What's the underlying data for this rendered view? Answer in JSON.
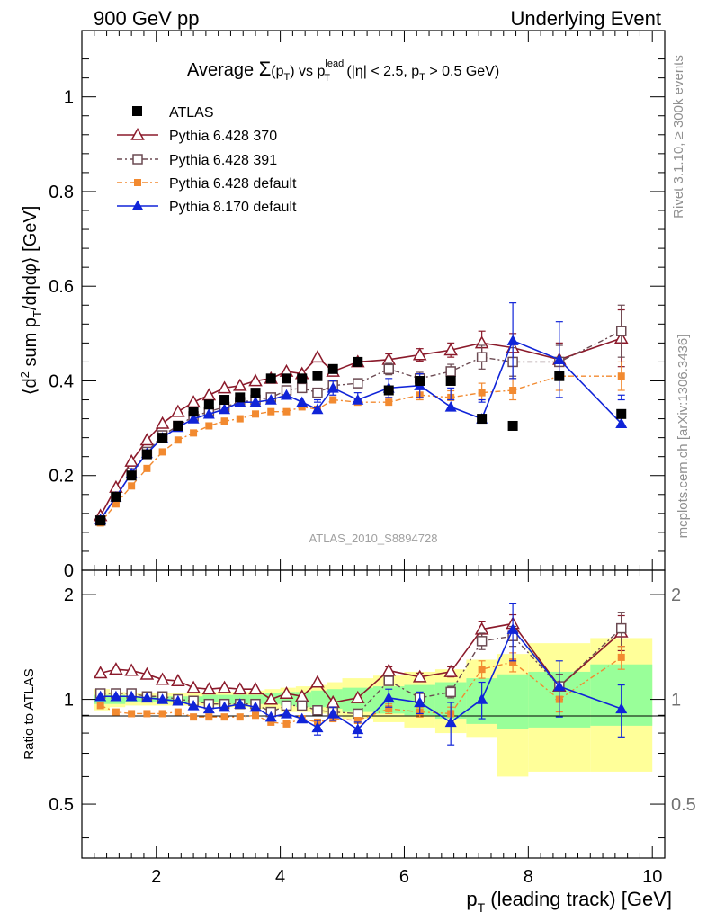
{
  "header": {
    "left": "900 GeV pp",
    "right": "Underlying Event"
  },
  "title": {
    "prefix": "Average ",
    "sigma": "Σ",
    "paren_open": "(p",
    "paren_sub": "T",
    "paren_close": ")",
    "vs": " vs p",
    "vs_sup": "lead",
    "vs_sub": "T",
    "cond1": " (|η| < 2.5, p",
    "cond_sub": "T",
    "cond2": " > 0.5 GeV)"
  },
  "watermark": "ATLAS_2010_S8894728",
  "side_labels": {
    "top": "Rivet 3.1.10, ≥ 300k events",
    "bottom": "mcplots.cern.ch [arXiv:1306.3436]"
  },
  "legend": {
    "atlas": "ATLAS",
    "py370": "Pythia 6.428 370",
    "py391": "Pythia 6.428 391",
    "pydef": "Pythia 6.428 default",
    "py8": "Pythia 8.170 default"
  },
  "colors": {
    "atlas": "#000000",
    "py370": "#8b1a2b",
    "py391": "#6b4a52",
    "pydef": "#f28a30",
    "py8": "#1024d8",
    "band_yellow": "#ffff99",
    "band_green": "#99ff99"
  },
  "chart_data": [
    {
      "type": "scatter",
      "ylabel": "⟨d² sum p_T/dηdφ⟩ [GeV]",
      "ylabel_parts": {
        "a": "⟨d",
        "a_sup": "2",
        "b": " sum p",
        "b_sub": "T",
        "c": "/dηdφ⟩ [GeV]"
      },
      "xlim": [
        0.8,
        10.2
      ],
      "ylim": [
        0,
        1.14
      ],
      "yticks": [
        0,
        0.2,
        0.4,
        0.6,
        0.8,
        1
      ],
      "ytick_labels": [
        "0",
        "0.2",
        "0.4",
        "0.6",
        "0.8",
        "1"
      ],
      "series": [
        {
          "name": "ATLAS",
          "key": "atlas",
          "x": [
            1.1,
            1.35,
            1.6,
            1.85,
            2.1,
            2.35,
            2.6,
            2.85,
            3.1,
            3.35,
            3.6,
            3.85,
            4.1,
            4.35,
            4.6,
            4.85,
            5.25,
            5.75,
            6.25,
            6.75,
            7.25,
            7.75,
            8.5,
            9.5
          ],
          "y": [
            0.105,
            0.155,
            0.2,
            0.245,
            0.28,
            0.305,
            0.335,
            0.35,
            0.36,
            0.365,
            0.375,
            0.405,
            0.405,
            0.405,
            0.41,
            0.425,
            0.44,
            0.38,
            0.4,
            0.4,
            0.32,
            0.305,
            0.41,
            0.33
          ]
        },
        {
          "name": "Pythia 6.428 370",
          "key": "py370",
          "x": [
            1.1,
            1.35,
            1.6,
            1.85,
            2.1,
            2.35,
            2.6,
            2.85,
            3.1,
            3.35,
            3.6,
            3.85,
            4.1,
            4.35,
            4.6,
            4.85,
            5.25,
            5.75,
            6.25,
            6.75,
            7.25,
            7.75,
            8.5,
            9.5
          ],
          "y": [
            0.115,
            0.175,
            0.23,
            0.275,
            0.31,
            0.335,
            0.355,
            0.37,
            0.385,
            0.39,
            0.4,
            0.405,
            0.42,
            0.415,
            0.45,
            0.42,
            0.44,
            0.445,
            0.455,
            0.465,
            0.48,
            0.47,
            0.445,
            0.49
          ],
          "err": [
            0,
            0,
            0,
            0,
            0,
            0,
            0,
            0,
            0,
            0,
            0,
            0,
            0,
            0,
            0,
            0,
            0,
            0.012,
            0.013,
            0.015,
            0.025,
            0.03,
            0.035,
            0.06
          ]
        },
        {
          "name": "Pythia 6.428 391",
          "key": "py391",
          "x": [
            1.1,
            1.35,
            1.6,
            1.85,
            2.1,
            2.35,
            2.6,
            2.85,
            3.1,
            3.35,
            3.6,
            3.85,
            4.1,
            4.35,
            4.6,
            4.85,
            5.25,
            5.75,
            6.25,
            6.75,
            7.25,
            7.75,
            8.5,
            9.5
          ],
          "y": [
            0.105,
            0.155,
            0.205,
            0.25,
            0.285,
            0.305,
            0.325,
            0.335,
            0.345,
            0.355,
            0.36,
            0.365,
            0.38,
            0.385,
            0.375,
            0.39,
            0.395,
            0.425,
            0.405,
            0.42,
            0.45,
            0.44,
            0.44,
            0.505
          ],
          "err": [
            0,
            0,
            0,
            0,
            0,
            0,
            0,
            0,
            0,
            0,
            0,
            0,
            0,
            0,
            0,
            0,
            0,
            0.012,
            0.013,
            0.015,
            0.025,
            0.03,
            0.035,
            0.055
          ]
        },
        {
          "name": "Pythia 6.428 default",
          "key": "pydef",
          "x": [
            1.1,
            1.35,
            1.6,
            1.85,
            2.1,
            2.35,
            2.6,
            2.85,
            3.1,
            3.35,
            3.6,
            3.85,
            4.1,
            4.35,
            4.6,
            4.85,
            5.25,
            5.75,
            6.25,
            6.75,
            7.25,
            7.75,
            8.5,
            9.5
          ],
          "y": [
            0.1,
            0.14,
            0.178,
            0.215,
            0.25,
            0.275,
            0.29,
            0.305,
            0.315,
            0.32,
            0.33,
            0.335,
            0.335,
            0.345,
            0.34,
            0.36,
            0.355,
            0.355,
            0.37,
            0.365,
            0.375,
            0.38,
            0.41,
            0.41
          ],
          "err": [
            0,
            0,
            0,
            0,
            0,
            0,
            0,
            0,
            0,
            0,
            0,
            0,
            0,
            0,
            0,
            0,
            0,
            0.01,
            0.012,
            0.014,
            0.02,
            0.025,
            0.03,
            0.03
          ]
        },
        {
          "name": "Pythia 8.170 default",
          "key": "py8",
          "x": [
            1.1,
            1.35,
            1.6,
            1.85,
            2.1,
            2.35,
            2.6,
            2.85,
            3.1,
            3.35,
            3.6,
            3.85,
            4.1,
            4.35,
            4.6,
            4.85,
            5.25,
            5.75,
            6.25,
            6.75,
            7.25,
            7.75,
            8.5,
            9.5
          ],
          "y": [
            0.107,
            0.155,
            0.205,
            0.247,
            0.28,
            0.302,
            0.32,
            0.33,
            0.34,
            0.355,
            0.355,
            0.36,
            0.37,
            0.355,
            0.34,
            0.385,
            0.36,
            0.385,
            0.39,
            0.345,
            0.32,
            0.485,
            0.445,
            0.31
          ],
          "err": [
            0,
            0,
            0,
            0,
            0,
            0,
            0,
            0,
            0,
            0,
            0,
            0,
            0,
            0,
            0.015,
            0.015,
            0.015,
            0.02,
            0.025,
            0.04,
            0.035,
            0.08,
            0.08,
            0.06
          ]
        }
      ]
    },
    {
      "type": "scatter",
      "ylabel": "Ratio to ATLAS",
      "xlabel": "p_T (leading track) [GeV]",
      "xlabel_parts": {
        "a": "p",
        "a_sub": "T",
        "b": " (leading track) [GeV]"
      },
      "xlim": [
        0.8,
        10.2
      ],
      "ylim": [
        0.35,
        2.35
      ],
      "yticks": [
        0.5,
        1,
        2
      ],
      "ytick_labels": [
        "0.5",
        "1",
        "2"
      ],
      "xticks": [
        2,
        4,
        6,
        8,
        10
      ],
      "xtick_labels": [
        "2",
        "4",
        "6",
        "8",
        "10"
      ],
      "bands": {
        "edges": [
          1.0,
          1.25,
          1.5,
          1.75,
          2.0,
          2.25,
          2.5,
          2.75,
          3.0,
          3.25,
          3.5,
          3.75,
          4.0,
          4.25,
          4.5,
          4.75,
          5.0,
          5.5,
          6.0,
          6.5,
          7.0,
          7.5,
          8.0,
          9.0,
          10.0
        ],
        "yellow_lo": [
          0.93,
          0.95,
          0.96,
          0.96,
          0.96,
          0.96,
          0.96,
          0.96,
          0.95,
          0.95,
          0.94,
          0.94,
          0.92,
          0.92,
          0.91,
          0.9,
          0.88,
          0.86,
          0.83,
          0.8,
          0.78,
          0.6,
          0.62,
          0.62
        ],
        "yellow_hi": [
          1.07,
          1.05,
          1.04,
          1.04,
          1.04,
          1.04,
          1.04,
          1.05,
          1.05,
          1.05,
          1.06,
          1.07,
          1.08,
          1.09,
          1.1,
          1.12,
          1.15,
          1.17,
          1.2,
          1.22,
          1.3,
          1.35,
          1.45,
          1.5
        ],
        "green_lo": [
          0.97,
          0.97,
          0.98,
          0.98,
          0.98,
          0.98,
          0.98,
          0.98,
          0.97,
          0.97,
          0.97,
          0.97,
          0.96,
          0.95,
          0.95,
          0.94,
          0.92,
          0.91,
          0.9,
          0.88,
          0.85,
          0.82,
          0.83,
          0.84
        ],
        "green_hi": [
          1.03,
          1.03,
          1.02,
          1.02,
          1.02,
          1.02,
          1.02,
          1.03,
          1.03,
          1.03,
          1.03,
          1.04,
          1.05,
          1.05,
          1.06,
          1.07,
          1.08,
          1.09,
          1.1,
          1.12,
          1.15,
          1.18,
          1.2,
          1.26
        ]
      },
      "series": [
        {
          "name": "Pythia 6.428 370",
          "key": "py370",
          "x": [
            1.1,
            1.35,
            1.6,
            1.85,
            2.1,
            2.35,
            2.6,
            2.85,
            3.1,
            3.35,
            3.6,
            3.85,
            4.1,
            4.35,
            4.6,
            4.85,
            5.25,
            5.75,
            6.25,
            6.75,
            7.25,
            7.75,
            8.5,
            9.5
          ],
          "y": [
            1.19,
            1.22,
            1.21,
            1.18,
            1.14,
            1.13,
            1.08,
            1.07,
            1.08,
            1.07,
            1.07,
            1.0,
            1.04,
            1.02,
            1.12,
            0.98,
            1.01,
            1.21,
            1.16,
            1.2,
            1.59,
            1.65,
            1.09,
            1.56
          ],
          "err": [
            0,
            0,
            0,
            0,
            0,
            0,
            0,
            0,
            0,
            0,
            0,
            0,
            0,
            0,
            0,
            0,
            0,
            0.03,
            0.03,
            0.04,
            0.08,
            0.1,
            0.09,
            0.18
          ]
        },
        {
          "name": "Pythia 6.428 391",
          "key": "py391",
          "x": [
            1.1,
            1.35,
            1.6,
            1.85,
            2.1,
            2.35,
            2.6,
            2.85,
            3.1,
            3.35,
            3.6,
            3.85,
            4.1,
            4.35,
            4.6,
            4.85,
            5.25,
            5.75,
            6.25,
            6.75,
            7.25,
            7.75,
            8.5,
            9.5
          ],
          "y": [
            1.04,
            1.04,
            1.04,
            1.02,
            1.02,
            1.0,
            0.99,
            0.97,
            0.97,
            0.97,
            0.97,
            0.92,
            0.96,
            0.96,
            0.93,
            0.92,
            0.91,
            1.13,
            1.01,
            1.05,
            1.47,
            1.52,
            1.09,
            1.6
          ],
          "err": [
            0,
            0,
            0,
            0,
            0,
            0,
            0,
            0,
            0,
            0,
            0,
            0,
            0,
            0,
            0,
            0,
            0,
            0.03,
            0.03,
            0.04,
            0.08,
            0.1,
            0.09,
            0.18
          ]
        },
        {
          "name": "Pythia 6.428 default",
          "key": "pydef",
          "x": [
            1.1,
            1.35,
            1.6,
            1.85,
            2.1,
            2.35,
            2.6,
            2.85,
            3.1,
            3.35,
            3.6,
            3.85,
            4.1,
            4.35,
            4.6,
            4.85,
            5.25,
            5.75,
            6.25,
            6.75,
            7.25,
            7.75,
            8.5,
            9.5
          ],
          "y": [
            0.96,
            0.92,
            0.91,
            0.91,
            0.91,
            0.92,
            0.89,
            0.89,
            0.89,
            0.89,
            0.9,
            0.86,
            0.85,
            0.88,
            0.86,
            0.88,
            0.87,
            0.94,
            0.92,
            0.91,
            1.22,
            1.28,
            1.0,
            1.32
          ],
          "err": [
            0,
            0,
            0,
            0,
            0,
            0,
            0,
            0,
            0,
            0,
            0,
            0,
            0,
            0,
            0,
            0,
            0,
            0.03,
            0.03,
            0.04,
            0.07,
            0.08,
            0.08,
            0.1
          ]
        },
        {
          "name": "Pythia 8.170 default",
          "key": "py8",
          "x": [
            1.1,
            1.35,
            1.6,
            1.85,
            2.1,
            2.35,
            2.6,
            2.85,
            3.1,
            3.35,
            3.6,
            3.85,
            4.1,
            4.35,
            4.6,
            4.85,
            5.25,
            5.75,
            6.25,
            6.75,
            7.25,
            7.75,
            8.5,
            9.5
          ],
          "y": [
            1.02,
            1.02,
            1.02,
            1.01,
            1.0,
            0.99,
            0.96,
            0.94,
            0.95,
            0.97,
            0.95,
            0.89,
            0.91,
            0.88,
            0.83,
            0.91,
            0.82,
            1.01,
            0.98,
            0.86,
            1.0,
            1.59,
            1.09,
            0.94
          ],
          "err": [
            0,
            0,
            0,
            0,
            0,
            0,
            0,
            0,
            0,
            0,
            0,
            0,
            0,
            0,
            0.04,
            0.04,
            0.04,
            0.06,
            0.07,
            0.12,
            0.12,
            0.3,
            0.2,
            0.16
          ]
        }
      ]
    }
  ]
}
